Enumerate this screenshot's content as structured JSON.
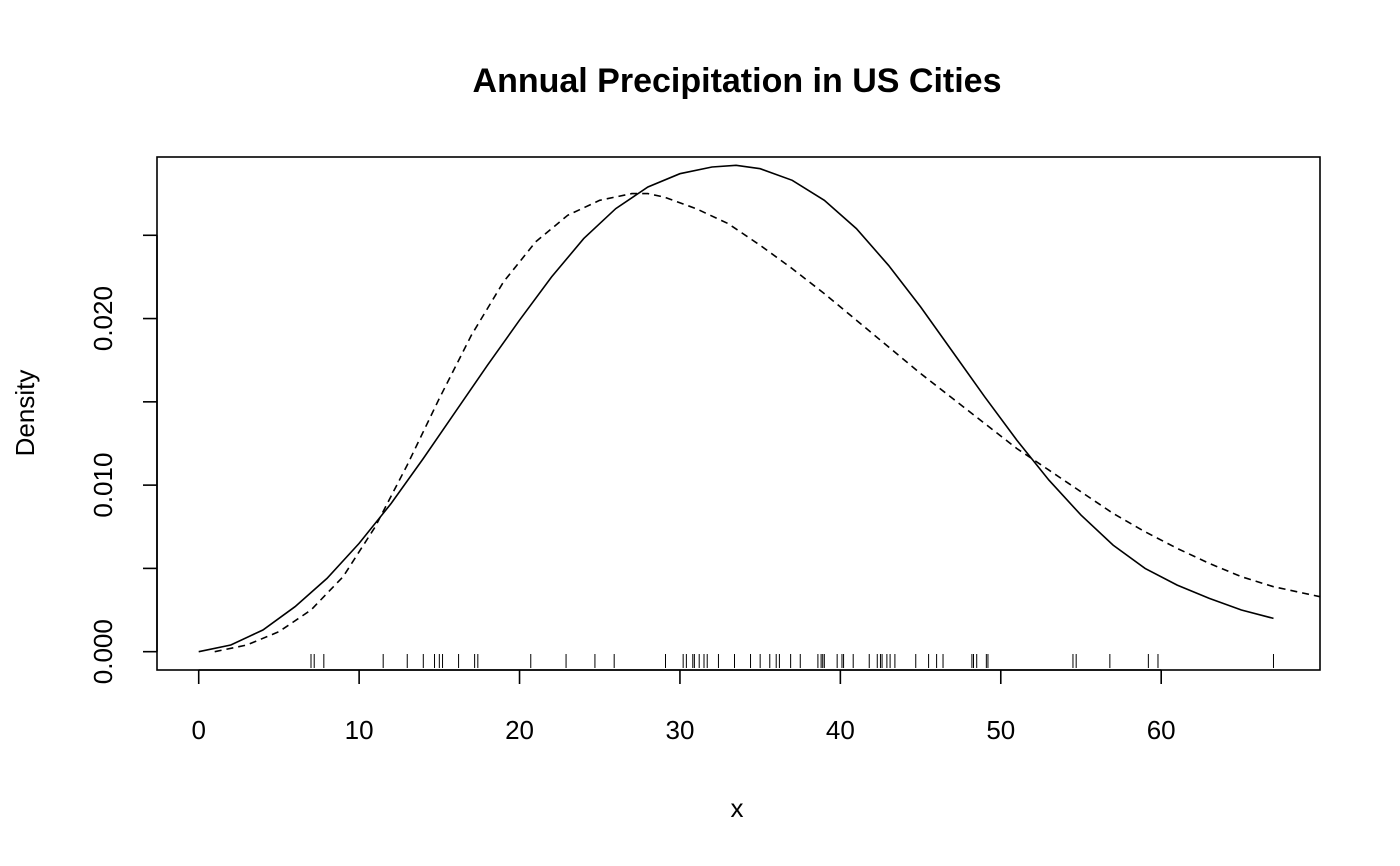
{
  "chart_data": {
    "type": "line",
    "title": "Annual Precipitation in US Cities",
    "xlabel": "x",
    "ylabel": "Density",
    "xlim": [
      -2.6,
      69.9
    ],
    "ylim": [
      -0.0011,
      0.0297
    ],
    "x_ticks": [
      0,
      10,
      20,
      30,
      40,
      50,
      60
    ],
    "x_tick_labels": [
      "0",
      "10",
      "20",
      "30",
      "40",
      "50",
      "60"
    ],
    "y_ticks": [
      0.0,
      0.005,
      0.01,
      0.015,
      0.02,
      0.025
    ],
    "y_tick_labels": [
      "0.000",
      "",
      "0.010",
      "",
      "0.020",
      ""
    ],
    "grid": false,
    "series": [
      {
        "style": "solid",
        "points": [
          [
            0,
            0.0
          ],
          [
            2,
            0.0004
          ],
          [
            4,
            0.0013
          ],
          [
            6,
            0.0027
          ],
          [
            8,
            0.0044
          ],
          [
            10,
            0.0065
          ],
          [
            12,
            0.0089
          ],
          [
            14,
            0.0116
          ],
          [
            16,
            0.0144
          ],
          [
            18,
            0.0172
          ],
          [
            20,
            0.0199
          ],
          [
            22,
            0.0225
          ],
          [
            24,
            0.0248
          ],
          [
            26,
            0.0266
          ],
          [
            28,
            0.0279
          ],
          [
            30,
            0.0287
          ],
          [
            32,
            0.0291
          ],
          [
            33.5,
            0.0292
          ],
          [
            35,
            0.029
          ],
          [
            37,
            0.0283
          ],
          [
            39,
            0.0271
          ],
          [
            41,
            0.0254
          ],
          [
            43,
            0.0232
          ],
          [
            45,
            0.0207
          ],
          [
            47,
            0.018
          ],
          [
            49,
            0.0153
          ],
          [
            51,
            0.0127
          ],
          [
            53,
            0.0103
          ],
          [
            55,
            0.0082
          ],
          [
            57,
            0.0064
          ],
          [
            59,
            0.005
          ],
          [
            61,
            0.004
          ],
          [
            63,
            0.0032
          ],
          [
            65,
            0.0025
          ],
          [
            67,
            0.002
          ]
        ]
      },
      {
        "style": "dashed",
        "points": [
          [
            1,
            0.0
          ],
          [
            3,
            0.0004
          ],
          [
            5,
            0.0012
          ],
          [
            7,
            0.0025
          ],
          [
            9,
            0.0045
          ],
          [
            11,
            0.0075
          ],
          [
            13,
            0.0112
          ],
          [
            15,
            0.0152
          ],
          [
            17,
            0.019
          ],
          [
            19,
            0.0222
          ],
          [
            21,
            0.0246
          ],
          [
            23,
            0.0262
          ],
          [
            25,
            0.0271
          ],
          [
            27,
            0.0275
          ],
          [
            28,
            0.0275
          ],
          [
            29,
            0.0273
          ],
          [
            31,
            0.0266
          ],
          [
            33,
            0.0257
          ],
          [
            35,
            0.0244
          ],
          [
            37,
            0.023
          ],
          [
            39,
            0.0215
          ],
          [
            41,
            0.0199
          ],
          [
            43,
            0.0183
          ],
          [
            45,
            0.0167
          ],
          [
            47,
            0.0152
          ],
          [
            49,
            0.0137
          ],
          [
            51,
            0.0122
          ],
          [
            53,
            0.0109
          ],
          [
            55,
            0.0096
          ],
          [
            57,
            0.0083
          ],
          [
            59,
            0.0072
          ],
          [
            61,
            0.0062
          ],
          [
            63,
            0.0053
          ],
          [
            65,
            0.0045
          ],
          [
            67,
            0.0039
          ],
          [
            69.9,
            0.0033
          ]
        ]
      }
    ],
    "rug": [
      7.0,
      7.2,
      7.8,
      11.5,
      13.0,
      14.0,
      14.7,
      15.0,
      15.2,
      16.2,
      17.2,
      17.4,
      20.7,
      22.9,
      24.7,
      25.9,
      29.1,
      30.2,
      30.4,
      30.8,
      30.9,
      31.2,
      31.5,
      31.7,
      32.4,
      33.4,
      34.4,
      35.0,
      35.6,
      36.0,
      36.2,
      36.9,
      37.5,
      38.6,
      38.8,
      38.9,
      39.0,
      39.8,
      40.1,
      40.2,
      40.8,
      41.8,
      42.3,
      42.5,
      42.6,
      42.9,
      43.1,
      43.4,
      44.7,
      45.5,
      46.0,
      46.4,
      48.2,
      48.3,
      48.5,
      49.1,
      49.2,
      54.5,
      54.7,
      56.8,
      59.2,
      59.8,
      67.0
    ]
  }
}
